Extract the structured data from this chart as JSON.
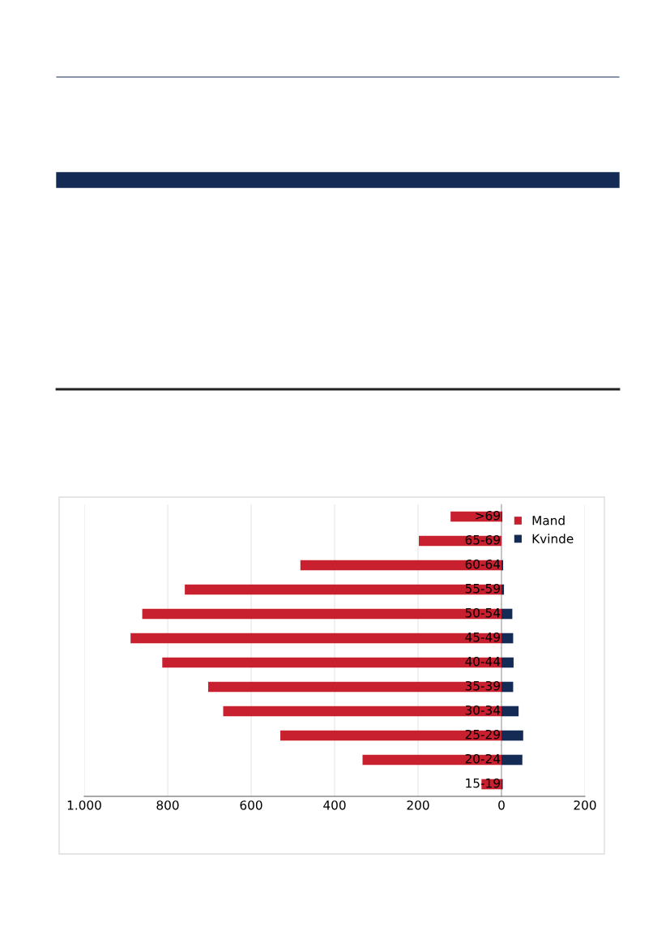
{
  "chart_data": {
    "type": "bar",
    "orientation": "horizontal",
    "stacked": true,
    "categories": [
      ">69",
      "65-69",
      "60-64",
      "55-59",
      "50-54",
      "45-49",
      "40-44",
      "35-39",
      "30-34",
      "25-29",
      "20-24",
      "15-19"
    ],
    "series": [
      {
        "name": "Mand",
        "color": "#c8202f",
        "values": [
          -122,
          -198,
          -482,
          -759,
          -861,
          -889,
          -813,
          -703,
          -667,
          -530,
          -333,
          -48
        ]
      },
      {
        "name": "Kvinde",
        "color": "#142b55",
        "values": [
          2,
          0,
          4,
          6,
          26,
          28,
          29,
          28,
          41,
          52,
          50,
          3
        ]
      }
    ],
    "xlim": [
      -1000,
      200
    ],
    "xticks": [
      {
        "value": -1000,
        "label": "1.000"
      },
      {
        "value": -800,
        "label": "800"
      },
      {
        "value": -600,
        "label": "600"
      },
      {
        "value": -400,
        "label": "400"
      },
      {
        "value": -200,
        "label": "200"
      },
      0,
      200
    ],
    "grid": "x",
    "legend": "top right"
  }
}
